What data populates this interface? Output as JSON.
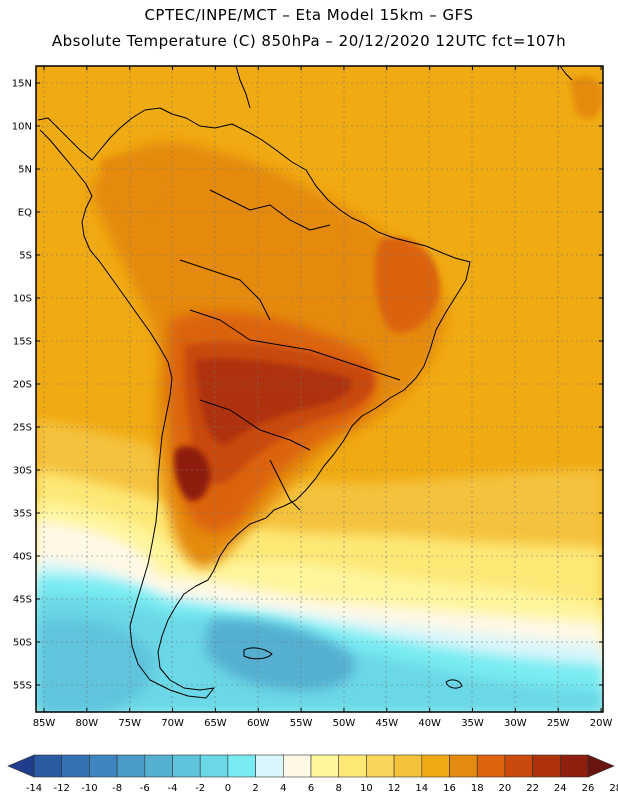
{
  "header": {
    "title_line1": "CPTEC/INPE/MCT –  Eta Model 15km – GFS",
    "title_line2": "Absolute Temperature (C) 850hPa – 20/12/2020 12UTC fct=107h"
  },
  "map": {
    "lat_labels": [
      "15N",
      "10N",
      "5N",
      "EQ",
      "5S",
      "10S",
      "15S",
      "20S",
      "25S",
      "30S",
      "35S",
      "40S",
      "45S",
      "50S",
      "55S"
    ],
    "lon_labels": [
      "85W",
      "80W",
      "75W",
      "70W",
      "65W",
      "60W",
      "55W",
      "50W",
      "45W",
      "40W",
      "35W",
      "30W",
      "25W",
      "20W"
    ]
  },
  "colorbar": {
    "colors": [
      "#1f3d8c",
      "#2a5aa0",
      "#3572b4",
      "#3f86c0",
      "#4a9bc8",
      "#55afd0",
      "#5ec4dc",
      "#6ad8e6",
      "#78ecf2",
      "#d8f6fb",
      "#fff8e6",
      "#fff59c",
      "#fde876",
      "#f9d55a",
      "#f5c23c",
      "#f0aa12",
      "#e58a10",
      "#dc640e",
      "#c94a0c",
      "#ad320c",
      "#8e1f0e",
      "#6a1410"
    ],
    "labels": [
      "-14",
      "-12",
      "-10",
      "-8",
      "-6",
      "-4",
      "-2",
      "0",
      "2",
      "4",
      "6",
      "8",
      "10",
      "12",
      "14",
      "16",
      "18",
      "20",
      "22",
      "24",
      "26",
      "28"
    ]
  }
}
